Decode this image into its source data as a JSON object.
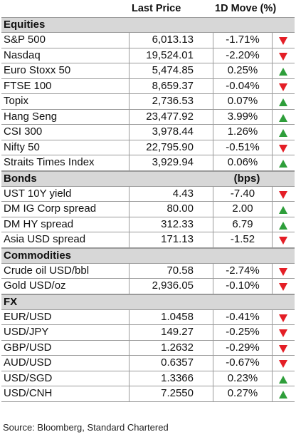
{
  "headers": {
    "price": "Last Price",
    "move": "1D Move (%)"
  },
  "sections": [
    {
      "name": "Equities",
      "unit": "",
      "rows": [
        {
          "label": "S&P 500",
          "price": "6,013.13",
          "move": "-1.71%",
          "dir": "down"
        },
        {
          "label": "Nasdaq",
          "price": "19,524.01",
          "move": "-2.20%",
          "dir": "down"
        },
        {
          "label": "Euro Stoxx 50",
          "price": "5,474.85",
          "move": "0.25%",
          "dir": "up"
        },
        {
          "label": "FTSE 100",
          "price": "8,659.37",
          "move": "-0.04%",
          "dir": "down"
        },
        {
          "label": "Topix",
          "price": "2,736.53",
          "move": "0.07%",
          "dir": "up"
        },
        {
          "label": "Hang Seng",
          "price": "23,477.92",
          "move": "3.99%",
          "dir": "up"
        },
        {
          "label": "CSI 300",
          "price": "3,978.44",
          "move": "1.26%",
          "dir": "up"
        },
        {
          "label": "Nifty 50",
          "price": "22,795.90",
          "move": "-0.51%",
          "dir": "down"
        },
        {
          "label": "Straits Times Index",
          "price": "3,929.94",
          "move": "0.06%",
          "dir": "up"
        }
      ]
    },
    {
      "name": "Bonds",
      "unit": "(bps)",
      "rows": [
        {
          "label": "UST 10Y yield",
          "price": "4.43",
          "move": "-7.40",
          "dir": "down"
        },
        {
          "label": "DM IG Corp spread",
          "price": "80.00",
          "move": "2.00",
          "dir": "up"
        },
        {
          "label": "DM HY spread",
          "price": "312.33",
          "move": "6.79",
          "dir": "up"
        },
        {
          "label": "Asia USD spread",
          "price": "171.13",
          "move": "-1.52",
          "dir": "down"
        }
      ]
    },
    {
      "name": "Commodities",
      "unit": "",
      "rows": [
        {
          "label": "Crude oil USD/bbl",
          "price": "70.58",
          "move": "-2.74%",
          "dir": "down"
        },
        {
          "label": "Gold USD/oz",
          "price": "2,936.05",
          "move": "-0.10%",
          "dir": "down"
        }
      ]
    },
    {
      "name": "FX",
      "unit": "",
      "rows": [
        {
          "label": "EUR/USD",
          "price": "1.0458",
          "move": "-0.41%",
          "dir": "down"
        },
        {
          "label": "USD/JPY",
          "price": "149.27",
          "move": "-0.25%",
          "dir": "down"
        },
        {
          "label": "GBP/USD",
          "price": "1.2632",
          "move": "-0.29%",
          "dir": "down"
        },
        {
          "label": "AUD/USD",
          "price": "0.6357",
          "move": "-0.67%",
          "dir": "down"
        },
        {
          "label": "USD/SGD",
          "price": "1.3366",
          "move": "0.23%",
          "dir": "up"
        },
        {
          "label": "USD/CNH",
          "price": "7.2550",
          "move": "0.27%",
          "dir": "up"
        }
      ]
    }
  ],
  "source": "Source: Bloomberg, Standard Chartered",
  "colors": {
    "up": "#2e9e3a",
    "down": "#e41e26",
    "section_bg": "#d7d7d7"
  }
}
